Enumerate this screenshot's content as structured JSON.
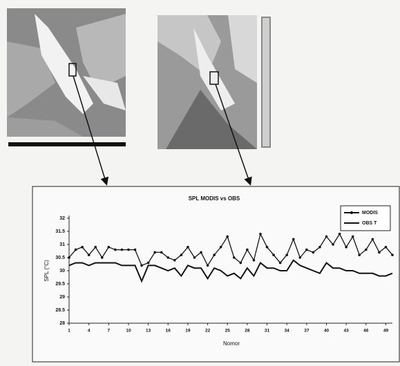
{
  "chart_data": {
    "type": "line",
    "title": "SPL MODIS vs OBS",
    "x_label": "Nomor",
    "y_label": "SPL (°C)",
    "x": [
      1,
      2,
      3,
      4,
      5,
      6,
      7,
      8,
      9,
      10,
      11,
      12,
      13,
      14,
      15,
      16,
      17,
      18,
      19,
      20,
      21,
      22,
      23,
      24,
      25,
      26,
      27,
      28,
      29,
      30,
      31,
      32,
      33,
      34,
      35,
      36,
      37,
      38,
      39,
      40,
      41,
      42,
      43,
      44,
      45,
      46,
      47,
      48,
      49,
      50
    ],
    "series": [
      {
        "name": "MODIS",
        "color": "#111111",
        "values": [
          30.5,
          30.8,
          30.9,
          30.6,
          30.9,
          30.5,
          30.9,
          30.8,
          30.8,
          30.8,
          30.8,
          30.2,
          30.3,
          30.7,
          30.7,
          30.5,
          30.4,
          30.6,
          30.9,
          30.5,
          30.7,
          30.2,
          30.6,
          30.9,
          31.3,
          30.5,
          30.3,
          30.8,
          30.4,
          31.4,
          30.9,
          30.6,
          30.3,
          30.6,
          31.2,
          30.5,
          30.8,
          30.7,
          30.9,
          31.3,
          31.0,
          31.4,
          30.9,
          31.3,
          30.6,
          30.8,
          31.2,
          30.7,
          30.9,
          30.6
        ]
      },
      {
        "name": "OBS T",
        "color": "#111111",
        "values": [
          30.2,
          30.3,
          30.3,
          30.2,
          30.3,
          30.3,
          30.3,
          30.3,
          30.2,
          30.2,
          30.2,
          29.6,
          30.2,
          30.2,
          30.1,
          30.0,
          30.1,
          29.8,
          30.2,
          30.1,
          30.1,
          29.7,
          30.1,
          30.0,
          29.8,
          29.9,
          29.7,
          30.1,
          29.8,
          30.3,
          30.1,
          30.1,
          30.0,
          30.0,
          30.4,
          30.2,
          30.1,
          30.0,
          29.9,
          30.3,
          30.1,
          30.1,
          30.0,
          30.0,
          29.9,
          29.9,
          29.9,
          29.8,
          29.8,
          29.9
        ]
      }
    ],
    "xlim": [
      1,
      50
    ],
    "xticks": [
      1,
      4,
      7,
      10,
      13,
      16,
      19,
      22,
      25,
      28,
      31,
      34,
      37,
      40,
      43,
      46,
      49
    ],
    "ylim": [
      28,
      32
    ],
    "yticks": [
      28,
      28.5,
      29,
      29.5,
      30,
      30.5,
      31,
      31.5,
      32
    ],
    "legend": "upper right"
  }
}
